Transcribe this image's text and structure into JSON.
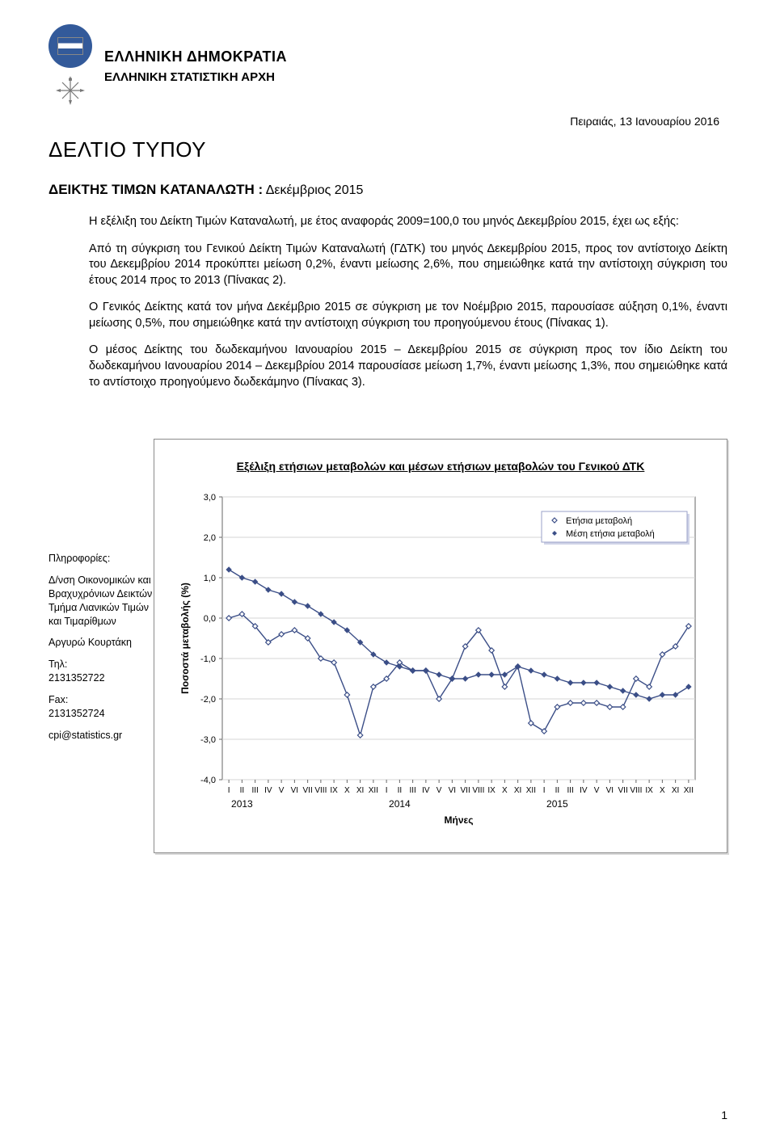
{
  "header": {
    "org1": "ΕΛΛΗΝΙΚΗ ΔΗΜΟΚΡΑΤΙΑ",
    "org2": "ΕΛΛΗΝΙΚΗ ΣΤΑΤΙΣΤΙΚΗ ΑΡΧΗ",
    "date": "Πειραιάς, 13 Ιανουαρίου 2016",
    "press_title": "ΔΕΛΤΙΟ ΤΥΠΟΥ",
    "subject_caps": "ΔΕΙΚΤΗΣ ΤΙΜΩΝ ΚΑΤΑΝΑΛΩΤΗ :",
    "subject_rest": " Δεκέμβριος 2015"
  },
  "paragraphs": {
    "p1": "Η εξέλιξη του Δείκτη Τιμών Καταναλωτή, με έτος αναφοράς 2009=100,0 του μηνός Δεκεμβρίου 2015, έχει ως εξής:",
    "p2": "Από τη σύγκριση του Γενικού Δείκτη Τιμών Καταναλωτή (ΓΔΤΚ) του μηνός Δεκεμβρίου 2015, προς τον αντίστοιχο Δείκτη του Δεκεμβρίου 2014 προκύπτει μείωση 0,2%, έναντι μείωσης 2,6%, που σημειώθηκε κατά την αντίστοιχη σύγκριση του έτους 2014 προς το 2013 (Πίνακας 2).",
    "p3": "Ο Γενικός Δείκτης κατά τον μήνα Δεκέμβριο 2015 σε σύγκριση με τον Νοέμβριο 2015, παρουσίασε αύξηση 0,1%, έναντι μείωσης 0,5%, που σημειώθηκε κατά την αντίστοιχη σύγκριση του προηγούμενου έτους (Πίνακας 1).",
    "p4": "Ο μέσος Δείκτης του δωδεκαμήνου Ιανουαρίου 2015 – Δεκεμβρίου 2015 σε σύγκριση προς τον ίδιο Δείκτη του δωδεκαμήνου Ιανουαρίου 2014 – Δεκεμβρίου 2014 παρουσίασε μείωση 1,7%, έναντι μείωσης 1,3%, που σημειώθηκε κατά το αντίστοιχο προηγούμενο δωδεκάμηνο (Πίνακας 3)."
  },
  "info": {
    "heading": "Πληροφορίες:",
    "dept": "Δ/νση Οικονομικών και Βραχυχρόνιων Δεικτών Τμήμα Λιανικών Τιμών και Τιμαρίθμων",
    "contact_name": "Αργυρώ Κουρτάκη",
    "tel_label": "Τηλ:",
    "tel": "2131352722",
    "fax_label": "Fax:",
    "fax": "2131352724",
    "email": "cpi@statistics.gr"
  },
  "chart": {
    "title": "Εξέλιξη ετήσιων μεταβολών και μέσων ετήσιων μεταβολών του Γενικού ΔΤΚ",
    "ylabel": "Ποσοστά μεταβολής (%)",
    "xlabel": "Μήνες",
    "legend1": "Ετήσια μεταβολή",
    "legend2": "Μέση ετήσια μεταβολή",
    "ymin": -4.0,
    "ymax": 3.0,
    "ytick_step": 1.0,
    "ytick_labels": [
      "3,0",
      "2,0",
      "1,0",
      "0,0",
      "-1,0",
      "-2,0",
      "-3,0",
      "-4,0"
    ],
    "months": [
      "I",
      "II",
      "III",
      "IV",
      "V",
      "VI",
      "VII",
      "VIII",
      "IX",
      "X",
      "XI",
      "XII",
      "I",
      "II",
      "III",
      "IV",
      "V",
      "VI",
      "VII",
      "VIII",
      "IX",
      "X",
      "XI",
      "XII",
      "I",
      "II",
      "III",
      "IV",
      "V",
      "VI",
      "VII",
      "VIII",
      "IX",
      "X",
      "XI",
      "XII"
    ],
    "years": [
      "2013",
      "2014",
      "2015"
    ],
    "series_annual": [
      0.0,
      0.1,
      -0.2,
      -0.6,
      -0.4,
      -0.3,
      -0.5,
      -1.0,
      -1.1,
      -1.9,
      -2.9,
      -1.7,
      -1.5,
      -1.1,
      -1.3,
      -1.3,
      -2.0,
      -1.5,
      -0.7,
      -0.3,
      -0.8,
      -1.7,
      -1.2,
      -2.6,
      -2.8,
      -2.2,
      -2.1,
      -2.1,
      -2.1,
      -2.2,
      -2.2,
      -1.5,
      -1.7,
      -0.9,
      -0.7,
      -0.2
    ],
    "series_avg": [
      1.2,
      1.0,
      0.9,
      0.7,
      0.6,
      0.4,
      0.3,
      0.1,
      -0.1,
      -0.3,
      -0.6,
      -0.9,
      -1.1,
      -1.2,
      -1.3,
      -1.3,
      -1.4,
      -1.5,
      -1.5,
      -1.4,
      -1.4,
      -1.4,
      -1.2,
      -1.3,
      -1.4,
      -1.5,
      -1.6,
      -1.6,
      -1.6,
      -1.7,
      -1.8,
      -1.9,
      -2.0,
      -1.9,
      -1.9,
      -1.7
    ],
    "color_series": "#3b4e87",
    "color_marker": "#3b4e87",
    "color_grid": "#d4d4d4",
    "color_plotbg": "#ffffff",
    "color_axis": "#666666"
  },
  "page_number": "1"
}
